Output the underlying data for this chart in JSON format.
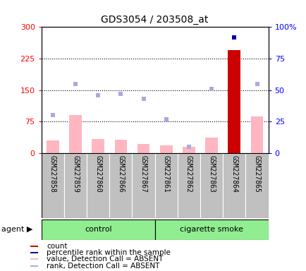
{
  "title": "GDS3054 / 203508_at",
  "samples": [
    "GSM227858",
    "GSM227859",
    "GSM227860",
    "GSM227866",
    "GSM227867",
    "GSM227861",
    "GSM227862",
    "GSM227863",
    "GSM227864",
    "GSM227865"
  ],
  "count_values": [
    30,
    90,
    33,
    32,
    22,
    18,
    15,
    37,
    245,
    88
  ],
  "count_absent": [
    true,
    true,
    true,
    true,
    true,
    true,
    true,
    true,
    false,
    true
  ],
  "rank_values": [
    30,
    55,
    46,
    47,
    43,
    27,
    5,
    51,
    92,
    55
  ],
  "rank_absent": [
    true,
    true,
    true,
    true,
    true,
    true,
    true,
    true,
    false,
    true
  ],
  "ylim_left": [
    0,
    300
  ],
  "ylim_right": [
    0,
    100
  ],
  "yticks_left": [
    0,
    75,
    150,
    225,
    300
  ],
  "yticks_right": [
    0,
    25,
    50,
    75,
    100
  ],
  "ytick_labels_left": [
    "0",
    "75",
    "150",
    "225",
    "300"
  ],
  "ytick_labels_right": [
    "0",
    "25",
    "50",
    "75",
    "100%"
  ],
  "control_count": 5,
  "smoke_count": 5,
  "group_color": "#90EE90",
  "bar_color_absent": "#FFB6C1",
  "bar_color_present": "#CC0000",
  "rank_color_absent": "#AAAADD",
  "rank_color_present": "#000099",
  "bg_plot": "#FFFFFF",
  "bg_xaxis": "#C0C0C0",
  "legend_items": [
    {
      "color": "#CC0000",
      "label": "count"
    },
    {
      "color": "#000099",
      "label": "percentile rank within the sample"
    },
    {
      "color": "#FFB6C1",
      "label": "value, Detection Call = ABSENT"
    },
    {
      "color": "#AAAADD",
      "label": "rank, Detection Call = ABSENT"
    }
  ]
}
